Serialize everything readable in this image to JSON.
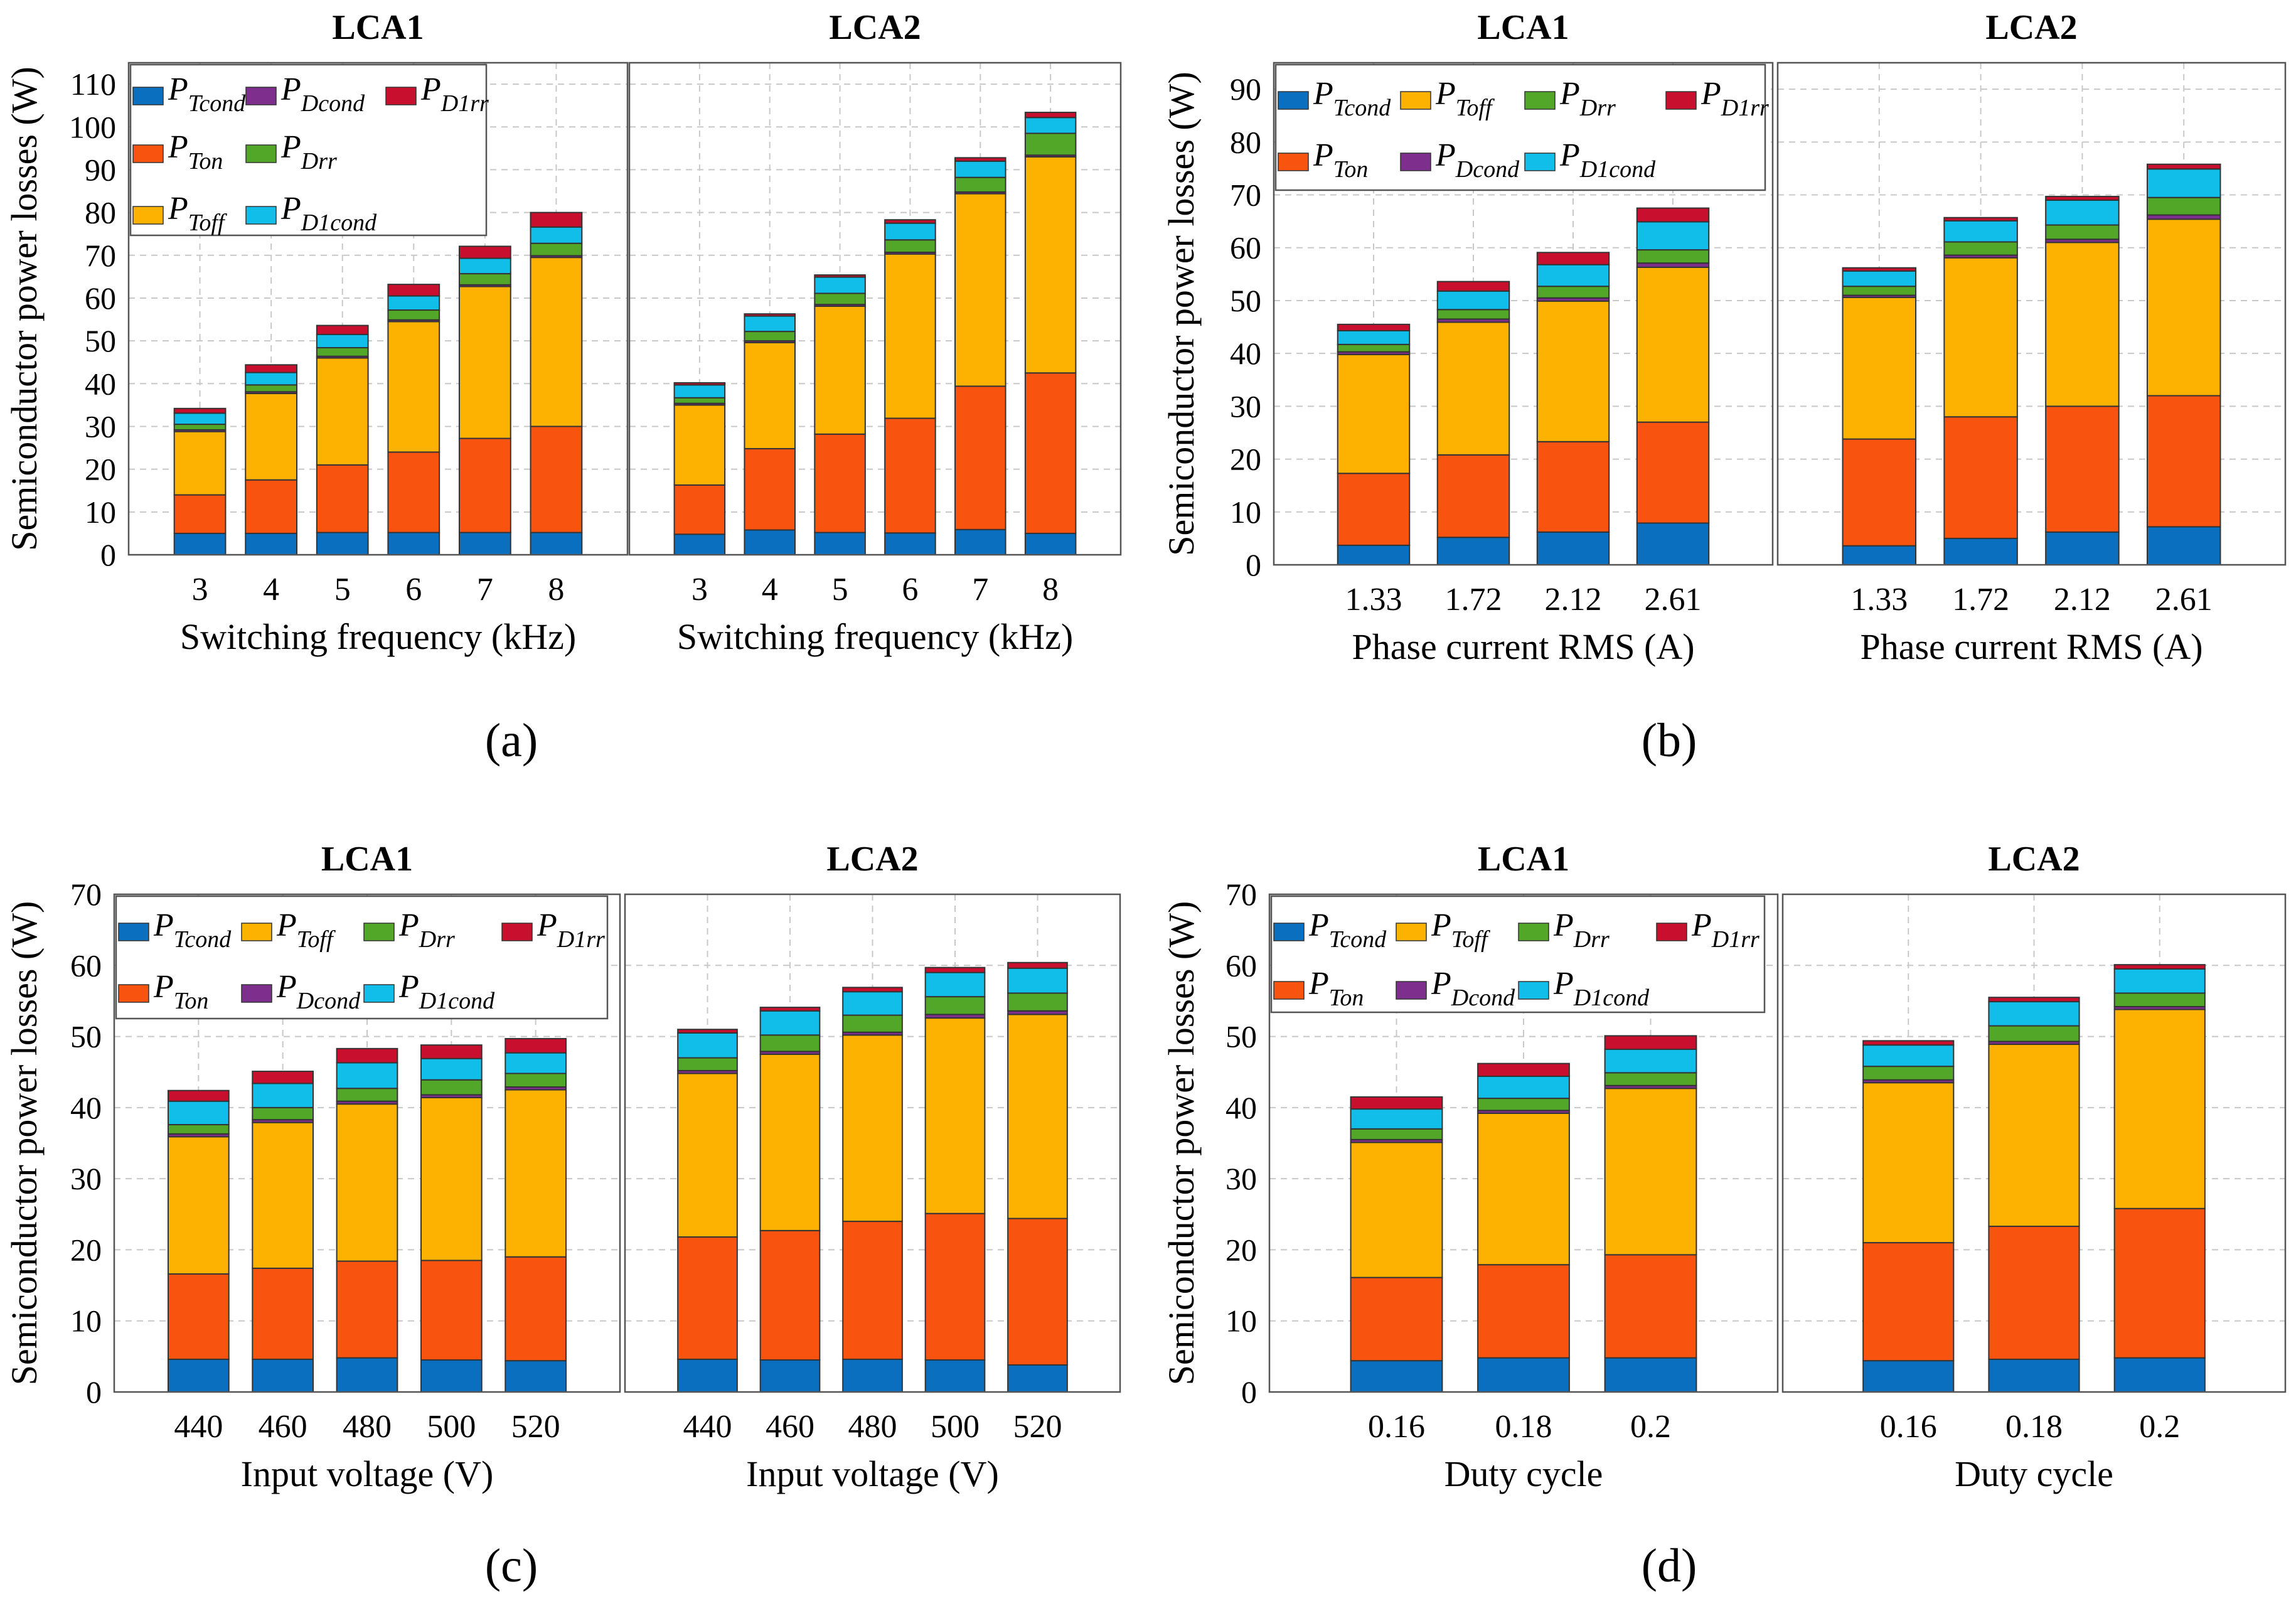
{
  "legend_labels": {
    "Tcond": {
      "main": "P",
      "sub": "Tcond"
    },
    "Ton": {
      "main": "P",
      "sub": "Ton"
    },
    "Toff": {
      "main": "P",
      "sub": "Toff"
    },
    "Dcond": {
      "main": "P",
      "sub": "Dcond"
    },
    "Drr": {
      "main": "P",
      "sub": "Drr"
    },
    "D1cond": {
      "main": "P",
      "sub": "D1cond"
    },
    "D1rr": {
      "main": "P",
      "sub": "D1rr"
    }
  },
  "colors": {
    "Tcond": "#0b6fc0",
    "Ton": "#f9540f",
    "Toff": "#fdb100",
    "Dcond": "#7e2f8e",
    "Drr": "#52a728",
    "D1cond": "#11bde9",
    "D1rr": "#c8102e"
  },
  "chart_data": [
    {
      "label": "(a)",
      "type": "bar",
      "stacked": true,
      "ylabel": "Semiconductor power losses (W)",
      "ylim": [
        0,
        115
      ],
      "yticks": [
        0,
        10,
        20,
        30,
        40,
        50,
        60,
        70,
        80,
        90,
        100,
        110
      ],
      "legend_placement": "top-left",
      "grid": true,
      "panels": [
        {
          "title": "LCA1",
          "xlabel": "Switching frequency (kHz)",
          "categories": [
            "3",
            "4",
            "5",
            "6",
            "7",
            "8"
          ],
          "series": [
            {
              "name": "Tcond",
              "values": [
                5,
                5,
                5.2,
                5.2,
                5.2,
                5.2
              ]
            },
            {
              "name": "Ton",
              "values": [
                9,
                12.5,
                15.8,
                18.8,
                22,
                24.8
              ]
            },
            {
              "name": "Toff",
              "values": [
                14.8,
                20.2,
                25,
                30.5,
                35.5,
                39.5
              ]
            },
            {
              "name": "Dcond",
              "values": [
                0.4,
                0.4,
                0.4,
                0.4,
                0.4,
                0.4
              ]
            },
            {
              "name": "Drr",
              "values": [
                1.3,
                1.6,
                2,
                2.3,
                2.6,
                2.9
              ]
            },
            {
              "name": "D1cond",
              "values": [
                2.6,
                2.9,
                3.1,
                3.3,
                3.6,
                3.8
              ]
            },
            {
              "name": "D1rr",
              "values": [
                1.1,
                1.8,
                2.1,
                2.7,
                2.8,
                3.4
              ]
            }
          ]
        },
        {
          "title": "LCA2",
          "xlabel": "Switching frequency (kHz)",
          "categories": [
            "3",
            "4",
            "5",
            "6",
            "7",
            "8"
          ],
          "series": [
            {
              "name": "Tcond",
              "values": [
                4.8,
                5.8,
                5.2,
                5.1,
                5.9,
                5
              ]
            },
            {
              "name": "Ton",
              "values": [
                11.5,
                19,
                23,
                26.8,
                33.5,
                37.5
              ]
            },
            {
              "name": "Toff",
              "values": [
                18.7,
                24.8,
                29.9,
                38.4,
                45,
                50.5
              ]
            },
            {
              "name": "Dcond",
              "values": [
                0.4,
                0.4,
                0.4,
                0.4,
                0.4,
                0.4
              ]
            },
            {
              "name": "Drr",
              "values": [
                1.3,
                2.2,
                2.6,
                2.9,
                3.4,
                5.1
              ]
            },
            {
              "name": "D1cond",
              "values": [
                3,
                3.6,
                3.8,
                3.9,
                3.8,
                3.7
              ]
            },
            {
              "name": "D1rr",
              "values": [
                0.5,
                0.5,
                0.5,
                0.8,
                0.8,
                1.2
              ]
            }
          ]
        }
      ]
    },
    {
      "label": "(b)",
      "type": "bar",
      "stacked": true,
      "ylabel": "Semiconductor power losses (W)",
      "ylim": [
        0,
        95
      ],
      "yticks": [
        0,
        10,
        20,
        30,
        40,
        50,
        60,
        70,
        80,
        90
      ],
      "legend_placement": "top-left",
      "grid": true,
      "panels": [
        {
          "title": "LCA1",
          "xlabel": "Phase current RMS (A)",
          "categories": [
            "1.33",
            "1.72",
            "2.12",
            "2.61"
          ],
          "series": [
            {
              "name": "Tcond",
              "values": [
                3.7,
                5.2,
                6.2,
                7.9
              ]
            },
            {
              "name": "Ton",
              "values": [
                13.6,
                15.6,
                17.1,
                19.1
              ]
            },
            {
              "name": "Toff",
              "values": [
                22.5,
                25.1,
                26.6,
                29.3
              ]
            },
            {
              "name": "Dcond",
              "values": [
                0.5,
                0.6,
                0.6,
                0.8
              ]
            },
            {
              "name": "Drr",
              "values": [
                1.4,
                1.8,
                2.2,
                2.5
              ]
            },
            {
              "name": "D1cond",
              "values": [
                2.6,
                3.5,
                4.1,
                5.3
              ]
            },
            {
              "name": "D1rr",
              "values": [
                1.2,
                1.8,
                2.3,
                2.6
              ]
            }
          ]
        },
        {
          "title": "LCA2",
          "xlabel": "Phase current RMS (A)",
          "categories": [
            "1.33",
            "1.72",
            "2.12",
            "2.61"
          ],
          "series": [
            {
              "name": "Tcond",
              "values": [
                3.6,
                5,
                6.2,
                7.2
              ]
            },
            {
              "name": "Ton",
              "values": [
                20.2,
                23,
                23.8,
                24.8
              ]
            },
            {
              "name": "Toff",
              "values": [
                26.8,
                30.1,
                31,
                33.4
              ]
            },
            {
              "name": "Dcond",
              "values": [
                0.4,
                0.5,
                0.6,
                0.8
              ]
            },
            {
              "name": "Drr",
              "values": [
                1.7,
                2.5,
                2.7,
                3.3
              ]
            },
            {
              "name": "D1cond",
              "values": [
                2.9,
                4,
                4.7,
                5.4
              ]
            },
            {
              "name": "D1rr",
              "values": [
                0.6,
                0.6,
                0.7,
                0.9
              ]
            }
          ]
        }
      ]
    },
    {
      "label": "(c)",
      "type": "bar",
      "stacked": true,
      "ylabel": "Semiconductor power losses (W)",
      "ylim": [
        0,
        70
      ],
      "yticks": [
        0,
        10,
        20,
        30,
        40,
        50,
        60,
        70
      ],
      "legend_placement": "top-left",
      "grid": true,
      "panels": [
        {
          "title": "LCA1",
          "xlabel": "Input voltage (V)",
          "categories": [
            "440",
            "460",
            "480",
            "500",
            "520"
          ],
          "series": [
            {
              "name": "Tcond",
              "values": [
                4.6,
                4.6,
                4.8,
                4.5,
                4.4
              ]
            },
            {
              "name": "Ton",
              "values": [
                12,
                12.8,
                13.6,
                14,
                14.6
              ]
            },
            {
              "name": "Toff",
              "values": [
                19.3,
                20.5,
                22.1,
                22.9,
                23.5
              ]
            },
            {
              "name": "Dcond",
              "values": [
                0.4,
                0.4,
                0.4,
                0.4,
                0.4
              ]
            },
            {
              "name": "Drr",
              "values": [
                1.3,
                1.7,
                1.8,
                2.1,
                1.9
              ]
            },
            {
              "name": "D1cond",
              "values": [
                3.3,
                3.4,
                3.6,
                3,
                2.9
              ]
            },
            {
              "name": "D1rr",
              "values": [
                1.5,
                1.7,
                2,
                1.9,
                2
              ]
            }
          ]
        },
        {
          "title": "LCA2",
          "xlabel": "Input voltage (V)",
          "categories": [
            "440",
            "460",
            "480",
            "500",
            "520"
          ],
          "series": [
            {
              "name": "Tcond",
              "values": [
                4.6,
                4.5,
                4.6,
                4.5,
                3.8
              ]
            },
            {
              "name": "Ton",
              "values": [
                17.2,
                18.2,
                19.4,
                20.6,
                20.6
              ]
            },
            {
              "name": "Toff",
              "values": [
                23,
                24.8,
                26.2,
                27.5,
                28.7
              ]
            },
            {
              "name": "Dcond",
              "values": [
                0.4,
                0.4,
                0.4,
                0.5,
                0.5
              ]
            },
            {
              "name": "Drr",
              "values": [
                1.8,
                2.3,
                2.4,
                2.5,
                2.5
              ]
            },
            {
              "name": "D1cond",
              "values": [
                3.5,
                3.4,
                3.3,
                3.4,
                3.5
              ]
            },
            {
              "name": "D1rr",
              "values": [
                0.5,
                0.5,
                0.6,
                0.7,
                0.8
              ]
            }
          ]
        }
      ]
    },
    {
      "label": "(d)",
      "type": "bar",
      "stacked": true,
      "ylabel": "Semiconductor power losses (W)",
      "ylim": [
        0,
        70
      ],
      "yticks": [
        0,
        10,
        20,
        30,
        40,
        50,
        60,
        70
      ],
      "legend_placement": "top-left",
      "grid": true,
      "panels": [
        {
          "title": "LCA1",
          "xlabel": "Duty cycle",
          "categories": [
            "0.16",
            "0.18",
            "0.2"
          ],
          "series": [
            {
              "name": "Tcond",
              "values": [
                4.4,
                4.8,
                4.8
              ]
            },
            {
              "name": "Ton",
              "values": [
                11.7,
                13.1,
                14.5
              ]
            },
            {
              "name": "Toff",
              "values": [
                19,
                21.3,
                23.4
              ]
            },
            {
              "name": "Dcond",
              "values": [
                0.4,
                0.4,
                0.4
              ]
            },
            {
              "name": "Drr",
              "values": [
                1.5,
                1.7,
                1.8
              ]
            },
            {
              "name": "D1cond",
              "values": [
                2.8,
                3.1,
                3.3
              ]
            },
            {
              "name": "D1rr",
              "values": [
                1.7,
                1.8,
                1.9
              ]
            }
          ]
        },
        {
          "title": "LCA2",
          "xlabel": "Duty cycle",
          "categories": [
            "0.16",
            "0.18",
            "0.2"
          ],
          "series": [
            {
              "name": "Tcond",
              "values": [
                4.4,
                4.6,
                4.8
              ]
            },
            {
              "name": "Ton",
              "values": [
                16.6,
                18.7,
                21
              ]
            },
            {
              "name": "Toff",
              "values": [
                22.5,
                25.6,
                28
              ]
            },
            {
              "name": "Dcond",
              "values": [
                0.4,
                0.4,
                0.4
              ]
            },
            {
              "name": "Drr",
              "values": [
                1.9,
                2.2,
                1.9
              ]
            },
            {
              "name": "D1cond",
              "values": [
                3,
                3.4,
                3.4
              ]
            },
            {
              "name": "D1rr",
              "values": [
                0.6,
                0.6,
                0.6
              ]
            }
          ]
        }
      ]
    }
  ]
}
